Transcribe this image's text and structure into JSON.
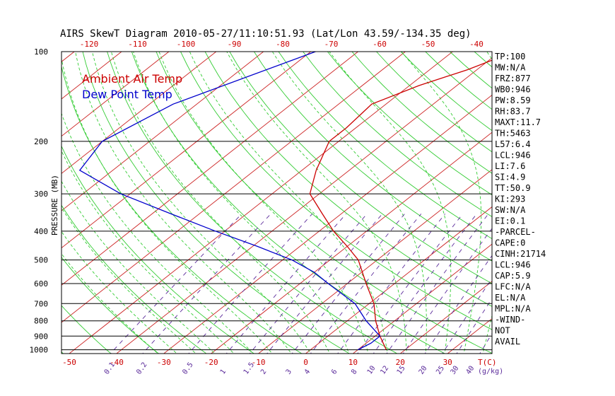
{
  "title": "AIRS SkewT Diagram 2010-05-27/11:10:51.93 (Lat/Lon 43.59/-134.35 deg)",
  "colors": {
    "isotherm": "#cc2222",
    "dry_adiabat": "#33cc33",
    "moist_adiabat": "#33cc33",
    "mixing_ratio": "#5a2a9a",
    "temperature": "#cc0000",
    "dewpoint": "#0000cc",
    "isobar": "#000000"
  },
  "chart_data": {
    "type": "line",
    "chart_kind": "skew-t log-p",
    "ylabel": "PRESSURE (MB)",
    "pressure_ticks": [
      100,
      200,
      300,
      400,
      500,
      600,
      700,
      800,
      900,
      1000
    ],
    "top_temp_ticks": [
      -120,
      -110,
      -100,
      -90,
      -80,
      -70,
      -60,
      -50,
      -40
    ],
    "bottom_temp_ticks": [
      -50,
      -40,
      -30,
      -20,
      -10,
      0,
      10,
      20,
      30
    ],
    "bottom_temp_unit": "T(C)",
    "mixing_ratio_ticks": [
      "0.1",
      "0.2",
      "0.5",
      "1",
      "1.5",
      "2",
      "3",
      "4",
      "6",
      "8",
      "10",
      "12",
      "15",
      "20",
      "25",
      "30",
      "40"
    ],
    "mixing_ratio_unit": "(g/kg)",
    "legend": [
      {
        "label": "Ambient Air Temp",
        "color": "#cc0000"
      },
      {
        "label": "Dew Point Temp",
        "color": "#0000cc"
      }
    ],
    "series": [
      {
        "name": "Ambient Air Temp",
        "points": [
          {
            "p": 100,
            "t": -37
          },
          {
            "p": 115,
            "t": -42
          },
          {
            "p": 130,
            "t": -48
          },
          {
            "p": 150,
            "t": -53
          },
          {
            "p": 180,
            "t": -52
          },
          {
            "p": 200,
            "t": -52
          },
          {
            "p": 250,
            "t": -47
          },
          {
            "p": 300,
            "t": -42
          },
          {
            "p": 350,
            "t": -34
          },
          {
            "p": 400,
            "t": -27
          },
          {
            "p": 450,
            "t": -20
          },
          {
            "p": 500,
            "t": -14
          },
          {
            "p": 600,
            "t": -6
          },
          {
            "p": 700,
            "t": 1
          },
          {
            "p": 800,
            "t": 6
          },
          {
            "p": 900,
            "t": 11
          },
          {
            "p": 1000,
            "t": 16
          }
        ]
      },
      {
        "name": "Dew Point Temp",
        "points": [
          {
            "p": 100,
            "t": -79
          },
          {
            "p": 150,
            "t": -95
          },
          {
            "p": 200,
            "t": -100
          },
          {
            "p": 250,
            "t": -97
          },
          {
            "p": 300,
            "t": -82
          },
          {
            "p": 350,
            "t": -66
          },
          {
            "p": 400,
            "t": -52
          },
          {
            "p": 450,
            "t": -39
          },
          {
            "p": 500,
            "t": -28
          },
          {
            "p": 550,
            "t": -20
          },
          {
            "p": 600,
            "t": -14
          },
          {
            "p": 700,
            "t": -3
          },
          {
            "p": 800,
            "t": 4
          },
          {
            "p": 900,
            "t": 11
          },
          {
            "p": 950,
            "t": 11
          },
          {
            "p": 1000,
            "t": 10
          }
        ]
      }
    ]
  },
  "stats": [
    "TP:100",
    "MW:N/A",
    "FRZ:877",
    "WB0:946",
    "PW:8.59",
    "RH:83.7",
    "MAXT:11.7",
    "TH:5463",
    "L57:6.4",
    "LCL:946",
    "LI:7.6",
    "SI:4.9",
    "TT:50.9",
    "KI:293",
    "SW:N/A",
    "EI:0.1",
    "-PARCEL-",
    "CAPE:0",
    "CINH:21714",
    "LCL:946",
    "CAP:5.9",
    "LFC:N/A",
    "EL:N/A",
    "MPL:N/A",
    "-WIND-",
    "NOT",
    "AVAIL"
  ]
}
